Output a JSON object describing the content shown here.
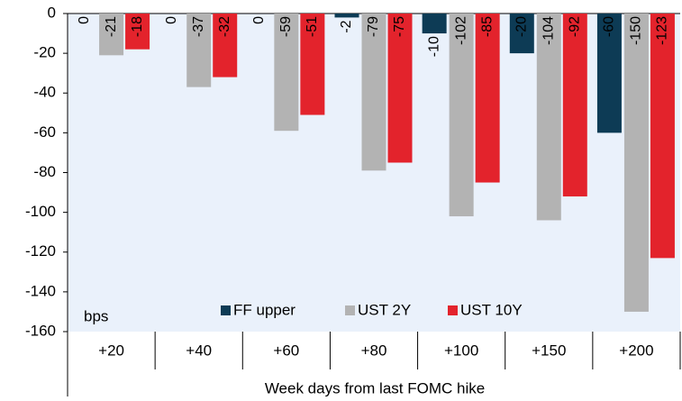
{
  "chart_data": {
    "type": "bar",
    "categories": [
      "+20",
      "+40",
      "+60",
      "+80",
      "+100",
      "+150",
      "+200"
    ],
    "series": [
      {
        "name": "FF upper",
        "color": "#0d3b55",
        "values": [
          0,
          0,
          0,
          -2,
          -10,
          -20,
          -60
        ]
      },
      {
        "name": "UST 2Y",
        "color": "#b3b3b3",
        "values": [
          -21,
          -37,
          -59,
          -79,
          -102,
          -104,
          -150
        ]
      },
      {
        "name": "UST 10Y",
        "color": "#e3232c",
        "values": [
          -18,
          -32,
          -51,
          -75,
          -85,
          -92,
          -123
        ]
      }
    ],
    "ylim": [
      -160,
      0
    ],
    "yticks": [
      0,
      -20,
      -40,
      -60,
      -80,
      -100,
      -120,
      -140,
      -160
    ],
    "y_unit": "bps",
    "xlabel": "Week days from last FOMC hike",
    "legend": "bottom"
  }
}
